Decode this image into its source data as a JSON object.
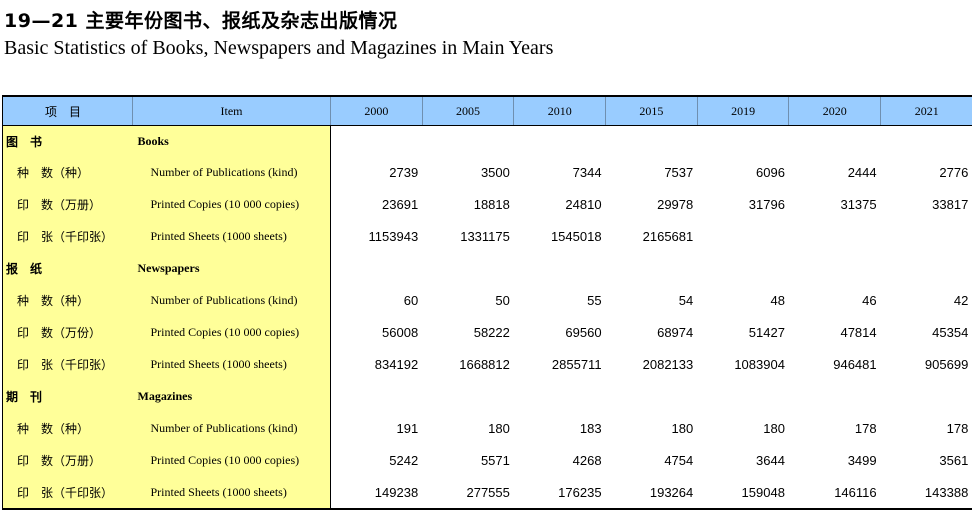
{
  "title_cn": "19—21  主要年份图书、报纸及杂志出版情况",
  "title_en": "Basic Statistics of Books, Newspapers and Magazines in Main Years",
  "table": {
    "head_cn": "项　目",
    "head_en": "Item",
    "years": [
      "2000",
      "2005",
      "2010",
      "2015",
      "2019",
      "2020",
      "2021"
    ],
    "rows": [
      {
        "type": "cat",
        "cn": "图　书",
        "en": "Books",
        "values": [
          "",
          "",
          "",
          "",
          "",
          "",
          ""
        ]
      },
      {
        "type": "sub",
        "cn": "种　数（种）",
        "en": "Number of Publications (kind)",
        "values": [
          "2739",
          "3500",
          "7344",
          "7537",
          "6096",
          "2444",
          "2776"
        ]
      },
      {
        "type": "sub",
        "cn": "印　数（万册）",
        "en": "Printed Copies (10 000 copies)",
        "values": [
          "23691",
          "18818",
          "24810",
          "29978",
          "31796",
          "31375",
          "33817"
        ]
      },
      {
        "type": "sub",
        "cn": "印　张（千印张）",
        "en": "Printed Sheets  (1000 sheets)",
        "values": [
          "1153943",
          "1331175",
          "1545018",
          "2165681",
          "",
          "",
          ""
        ]
      },
      {
        "type": "cat",
        "cn": "报　纸",
        "en": "Newspapers",
        "values": [
          "",
          "",
          "",
          "",
          "",
          "",
          ""
        ]
      },
      {
        "type": "sub",
        "cn": "种　数（种）",
        "en": "Number of Publications (kind)",
        "values": [
          "60",
          "50",
          "55",
          "54",
          "48",
          "46",
          "42"
        ]
      },
      {
        "type": "sub",
        "cn": "印　数（万份）",
        "en": "Printed Copies (10 000 copies)",
        "values": [
          "56008",
          "58222",
          "69560",
          "68974",
          "51427",
          "47814",
          "45354"
        ]
      },
      {
        "type": "sub",
        "cn": "印　张（千印张）",
        "en": "Printed Sheets  (1000 sheets)",
        "values": [
          "834192",
          "1668812",
          "2855711",
          "2082133",
          "1083904",
          "946481",
          "905699"
        ]
      },
      {
        "type": "cat",
        "cn": "期　刊",
        "en": "Magazines",
        "values": [
          "",
          "",
          "",
          "",
          "",
          "",
          ""
        ]
      },
      {
        "type": "sub",
        "cn": "种　数（种）",
        "en": "Number of Publications (kind)",
        "values": [
          "191",
          "180",
          "183",
          "180",
          "180",
          "178",
          "178"
        ]
      },
      {
        "type": "sub",
        "cn": "印　数（万册）",
        "en": "Printed Copies (10 000 copies)",
        "values": [
          "5242",
          "5571",
          "4268",
          "4754",
          "3644",
          "3499",
          "3561"
        ]
      },
      {
        "type": "sub",
        "cn": "印　张（千印张）",
        "en": "Printed Sheets (1000 sheets)",
        "values": [
          "149238",
          "277555",
          "176235",
          "193264",
          "159048",
          "146116",
          "143388"
        ]
      }
    ]
  },
  "colors": {
    "header_bg": "#99ccff",
    "item_column_bg": "#ffff99"
  }
}
